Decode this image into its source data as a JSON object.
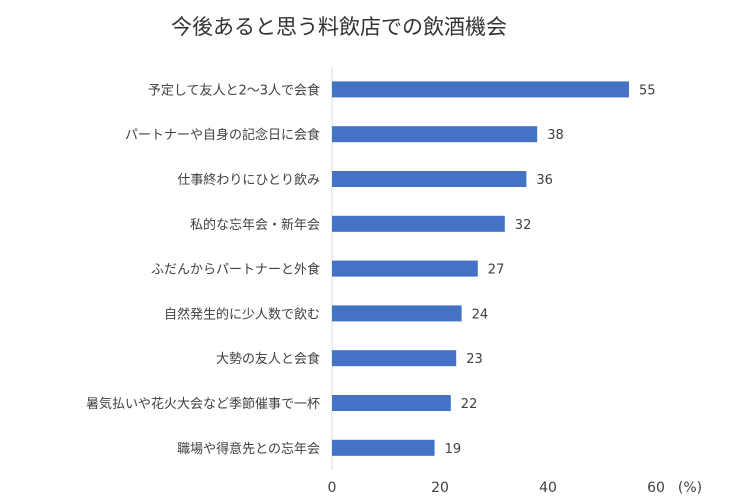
{
  "chart_data": {
    "type": "bar",
    "orientation": "horizontal",
    "title": "今後あると思う料飲店での飲酒機会",
    "categories": [
      "予定して友人と2～3人で会食",
      "パートナーや自身の記念日に会食",
      "仕事終わりにひとり飲み",
      "私的な忘年会・新年会",
      "ふだんからパートナーと外食",
      "自然発生的に少人数で飲む",
      "大勢の友人と会食",
      "暑気払いや花火大会など季節催事で一杯",
      "職場や得意先との忘年会"
    ],
    "values": [
      55,
      38,
      36,
      32,
      27,
      24,
      23,
      22,
      19
    ],
    "xlim": [
      0,
      60
    ],
    "xticks": [
      "0",
      "20",
      "40",
      "60"
    ],
    "unit": "(%)",
    "bar_color": "#4472C4",
    "grid": false
  }
}
